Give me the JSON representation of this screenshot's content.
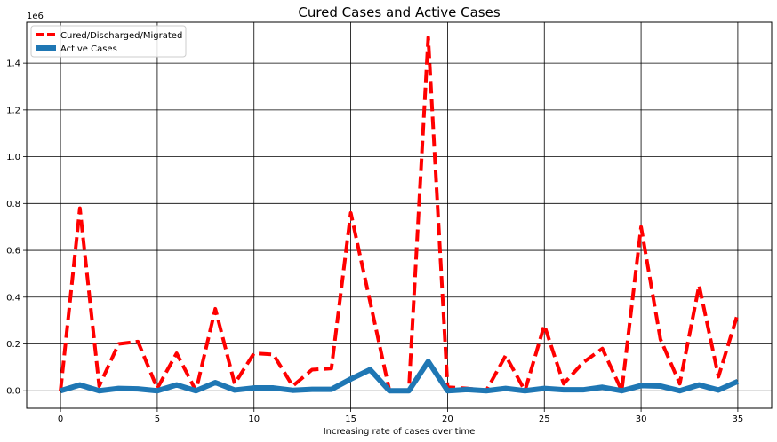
{
  "chart_data": {
    "type": "line",
    "title": "Cured Cases and Active Cases",
    "xlabel": "Increasing rate of cases over time",
    "ylabel": "",
    "offset_text": "1e6",
    "x": [
      0,
      1,
      2,
      3,
      4,
      5,
      6,
      7,
      8,
      9,
      10,
      11,
      12,
      13,
      14,
      15,
      16,
      17,
      18,
      19,
      20,
      21,
      22,
      23,
      24,
      25,
      26,
      27,
      28,
      29,
      30,
      31,
      32,
      33,
      34,
      35
    ],
    "xlim": [
      -1.75,
      36.75
    ],
    "ylim": [
      -0.075,
      1.575
    ],
    "x_ticks": [
      0,
      5,
      10,
      15,
      20,
      25,
      30,
      35
    ],
    "x_tick_labels": [
      "0",
      "5",
      "10",
      "15",
      "20",
      "25",
      "30",
      "35"
    ],
    "y_ticks": [
      0.0,
      0.2,
      0.4,
      0.6,
      0.8,
      1.0,
      1.2,
      1.4
    ],
    "y_tick_labels": [
      "0.0",
      "0.2",
      "0.4",
      "0.6",
      "0.8",
      "1.0",
      "1.2",
      "1.4"
    ],
    "grid": true,
    "legend_position": "top-left",
    "series": [
      {
        "name": "Cured/Discharged/Migrated",
        "color": "#ff0000",
        "style": "dashed",
        "values": [
          0.0,
          0.78,
          0.02,
          0.2,
          0.21,
          0.01,
          0.16,
          0.0,
          0.35,
          0.03,
          0.16,
          0.155,
          0.02,
          0.09,
          0.095,
          0.76,
          0.38,
          0.0,
          0.0,
          1.51,
          0.015,
          0.01,
          0.0,
          0.15,
          0.0,
          0.28,
          0.03,
          0.12,
          0.18,
          0.0,
          0.7,
          0.22,
          0.03,
          0.45,
          0.06,
          0.33
        ]
      },
      {
        "name": "Active Cases",
        "color": "#1f77b4",
        "style": "solid",
        "values": [
          0.0,
          0.025,
          0.0,
          0.01,
          0.008,
          0.0,
          0.025,
          0.0,
          0.035,
          0.003,
          0.012,
          0.012,
          0.002,
          0.006,
          0.006,
          0.05,
          0.09,
          0.0,
          0.0,
          0.125,
          0.0,
          0.005,
          0.0,
          0.01,
          0.0,
          0.01,
          0.004,
          0.004,
          0.015,
          0.0,
          0.022,
          0.02,
          0.0,
          0.025,
          0.003,
          0.04
        ]
      }
    ]
  }
}
